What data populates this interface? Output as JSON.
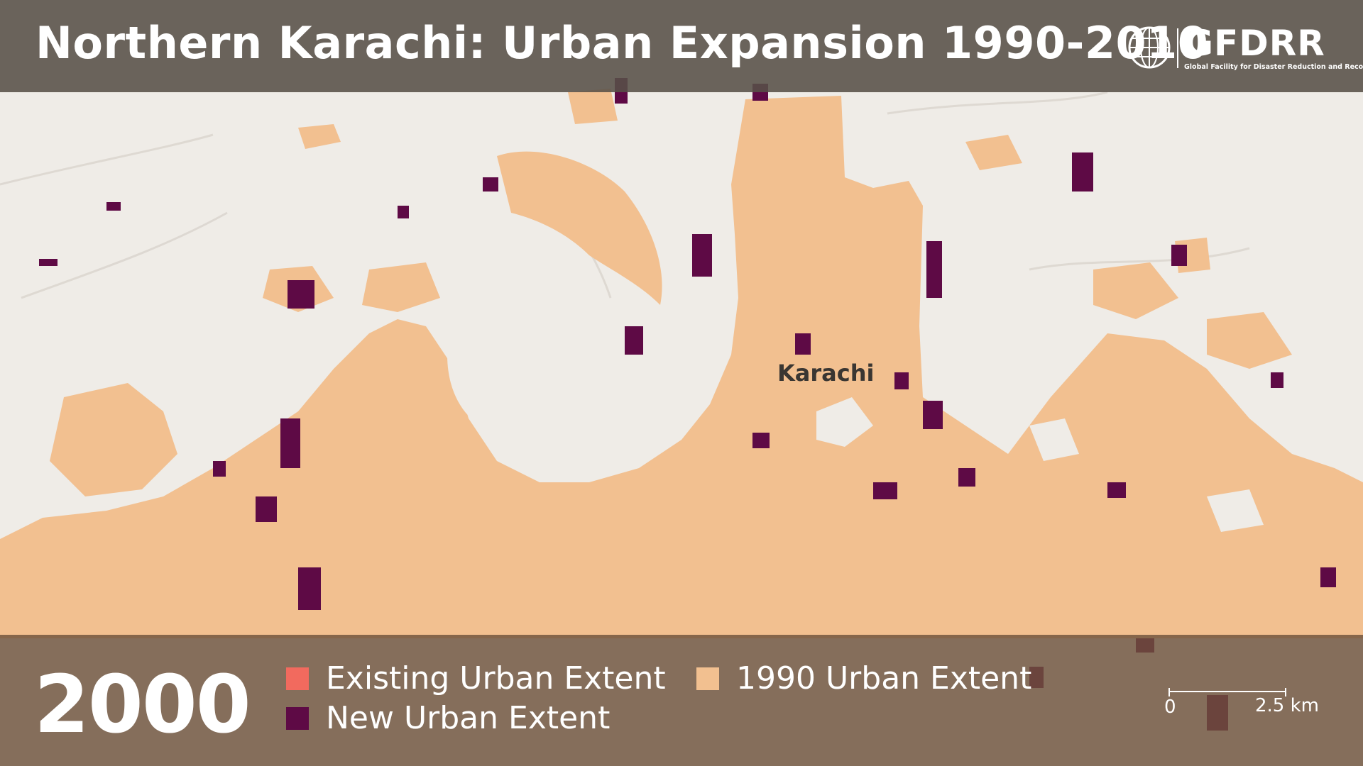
{
  "title": "Northern Karachi: Urban Expansion 1990-2010",
  "logo": {
    "name": "GFDRR",
    "subtitle": "Global Facility for Disaster Reduction and Recovery"
  },
  "map": {
    "place_label": "Karachi",
    "colors": {
      "background": "#efece7",
      "urban_1990": "#f2c090",
      "new_urban": "#5e0a45",
      "existing_urban": "#f26a5e"
    }
  },
  "year": "2000",
  "legend": [
    {
      "label": "Existing Urban Extent",
      "color": "#f26a5e"
    },
    {
      "label": "1990 Urban Extent",
      "color": "#f2c090"
    },
    {
      "label": "New Urban Extent",
      "color": "#5e0a45"
    }
  ],
  "scale_bar": {
    "start": "0",
    "end": "2.5 km"
  }
}
